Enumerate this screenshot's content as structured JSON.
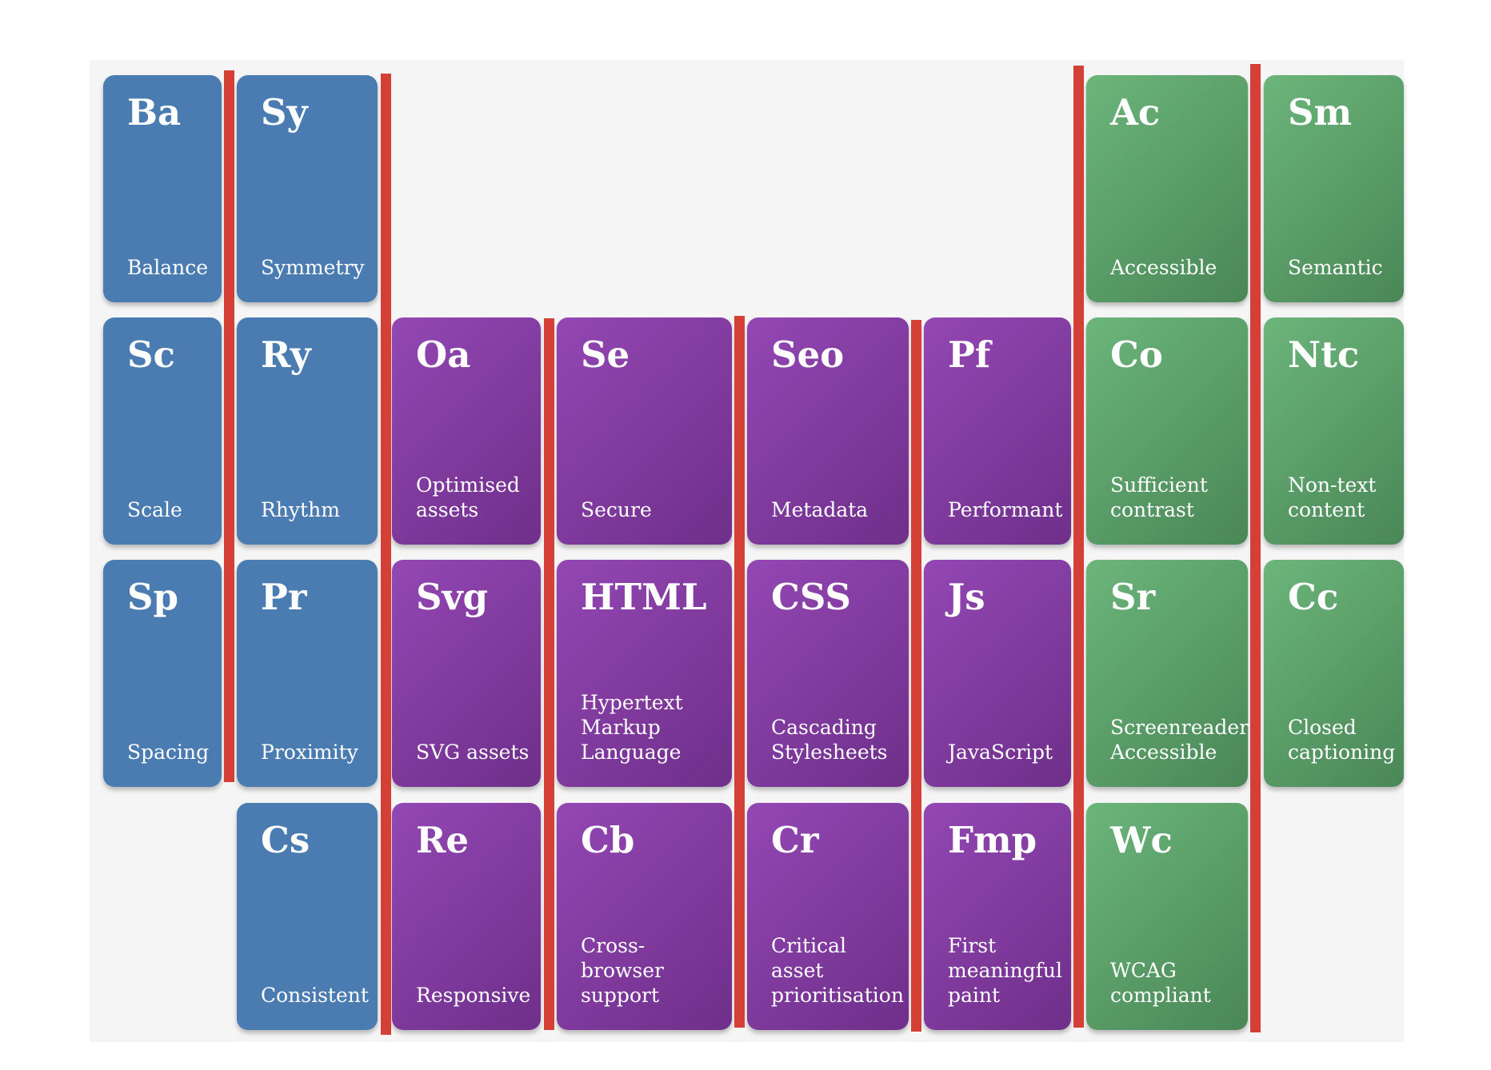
{
  "elements": [
    {
      "symbol": "Ba",
      "name": "Balance"
    },
    {
      "symbol": "Sy",
      "name": "Symmetry"
    },
    {
      "symbol": "Ac",
      "name": "Accessible"
    },
    {
      "symbol": "Sm",
      "name": "Semantic"
    },
    {
      "symbol": "Sc",
      "name": "Scale"
    },
    {
      "symbol": "Ry",
      "name": "Rhythm"
    },
    {
      "symbol": "Oa",
      "name": "Optimised\nassets"
    },
    {
      "symbol": "Se",
      "name": "Secure"
    },
    {
      "symbol": "Seo",
      "name": "Metadata"
    },
    {
      "symbol": "Pf",
      "name": "Performant"
    },
    {
      "symbol": "Co",
      "name": "Sufficient\ncontrast"
    },
    {
      "symbol": "Ntc",
      "name": "Non-text\ncontent"
    },
    {
      "symbol": "Sp",
      "name": "Spacing"
    },
    {
      "symbol": "Pr",
      "name": "Proximity"
    },
    {
      "symbol": "Svg",
      "name": "SVG assets"
    },
    {
      "symbol": "HTML",
      "name": "Hypertext\nMarkup\nLanguage"
    },
    {
      "symbol": "CSS",
      "name": "Cascading\nStylesheets"
    },
    {
      "symbol": "Js",
      "name": "JavaScript"
    },
    {
      "symbol": "Sr",
      "name": "Screenreader\nAccessible"
    },
    {
      "symbol": "Cc",
      "name": "Closed\ncaptioning"
    },
    {
      "symbol": "Cs",
      "name": "Consistent"
    },
    {
      "symbol": "Re",
      "name": "Responsive"
    },
    {
      "symbol": "Cb",
      "name": "Cross-browser\nsupport"
    },
    {
      "symbol": "Cr",
      "name": "Critical\nasset\nprioritisation"
    },
    {
      "symbol": "Fmp",
      "name": "First\nmeaningful\npaint"
    },
    {
      "symbol": "Wc",
      "name": "WCAG\ncompliant"
    }
  ],
  "colors": {
    "design": "#4a7cb2",
    "web": "#8a3fa8",
    "accessibility": "#5fa66c",
    "divider": "#d44035"
  }
}
